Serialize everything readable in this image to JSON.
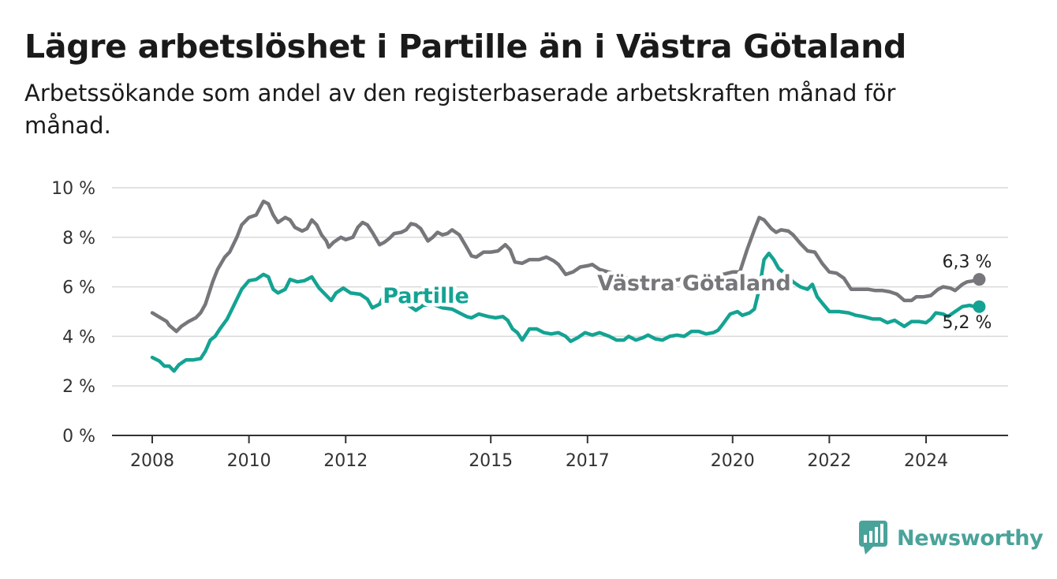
{
  "header": {
    "title": "Lägre arbetslöshet i Partille än i Västra Götaland",
    "subtitle": "Arbetssökande som andel av den registerbaserade arbetskraften månad för månad."
  },
  "brand": {
    "name": "Newsworthy",
    "icon": "bar-chart-bubble-icon",
    "color": "#4aa39a"
  },
  "chart_data": {
    "type": "line",
    "y_ticks": [
      "0 %",
      "2 %",
      "4 %",
      "6 %",
      "8 %",
      "10 %"
    ],
    "ylim": [
      0,
      10
    ],
    "x_ticks": [
      {
        "label": "2008",
        "x": 2008.0
      },
      {
        "label": "2010",
        "x": 2010.0
      },
      {
        "label": "2012",
        "x": 2012.0
      },
      {
        "label": "2015",
        "x": 2015.0
      },
      {
        "label": "2017",
        "x": 2017.0
      },
      {
        "label": "2020",
        "x": 2020.0
      },
      {
        "label": "2022",
        "x": 2022.0
      },
      {
        "label": "2024",
        "x": 2024.0
      }
    ],
    "grid": true,
    "series": [
      {
        "name": "Västra Götaland",
        "color": "#76767b",
        "end_label": "6,3 %",
        "points": [
          [
            2008.0,
            4.95
          ],
          [
            2008.3,
            4.6
          ],
          [
            2008.35,
            4.45
          ],
          [
            2008.5,
            4.2
          ],
          [
            2008.6,
            4.4
          ],
          [
            2008.75,
            4.6
          ],
          [
            2008.9,
            4.75
          ],
          [
            2009.0,
            4.95
          ],
          [
            2009.1,
            5.3
          ],
          [
            2009.25,
            6.2
          ],
          [
            2009.35,
            6.7
          ],
          [
            2009.5,
            7.2
          ],
          [
            2009.6,
            7.4
          ],
          [
            2009.75,
            8.0
          ],
          [
            2009.85,
            8.5
          ],
          [
            2010.0,
            8.8
          ],
          [
            2010.15,
            8.9
          ],
          [
            2010.3,
            9.45
          ],
          [
            2010.4,
            9.35
          ],
          [
            2010.5,
            8.9
          ],
          [
            2010.6,
            8.6
          ],
          [
            2010.75,
            8.8
          ],
          [
            2010.85,
            8.7
          ],
          [
            2010.95,
            8.4
          ],
          [
            2011.1,
            8.25
          ],
          [
            2011.2,
            8.35
          ],
          [
            2011.3,
            8.7
          ],
          [
            2011.4,
            8.5
          ],
          [
            2011.5,
            8.1
          ],
          [
            2011.6,
            7.85
          ],
          [
            2011.65,
            7.6
          ],
          [
            2011.75,
            7.8
          ],
          [
            2011.9,
            8.0
          ],
          [
            2012.0,
            7.9
          ],
          [
            2012.15,
            8.0
          ],
          [
            2012.25,
            8.4
          ],
          [
            2012.35,
            8.6
          ],
          [
            2012.45,
            8.5
          ],
          [
            2012.55,
            8.2
          ],
          [
            2012.7,
            7.7
          ],
          [
            2012.8,
            7.8
          ],
          [
            2012.9,
            7.95
          ],
          [
            2013.0,
            8.15
          ],
          [
            2013.15,
            8.2
          ],
          [
            2013.25,
            8.3
          ],
          [
            2013.35,
            8.55
          ],
          [
            2013.45,
            8.5
          ],
          [
            2013.55,
            8.35
          ],
          [
            2013.7,
            7.85
          ],
          [
            2013.8,
            8.0
          ],
          [
            2013.9,
            8.2
          ],
          [
            2014.0,
            8.1
          ],
          [
            2014.1,
            8.15
          ],
          [
            2014.2,
            8.3
          ],
          [
            2014.35,
            8.1
          ],
          [
            2014.5,
            7.6
          ],
          [
            2014.6,
            7.25
          ],
          [
            2014.7,
            7.2
          ],
          [
            2014.85,
            7.4
          ],
          [
            2015.0,
            7.4
          ],
          [
            2015.15,
            7.45
          ],
          [
            2015.3,
            7.7
          ],
          [
            2015.4,
            7.5
          ],
          [
            2015.5,
            7.0
          ],
          [
            2015.65,
            6.95
          ],
          [
            2015.8,
            7.1
          ],
          [
            2016.0,
            7.1
          ],
          [
            2016.15,
            7.2
          ],
          [
            2016.3,
            7.05
          ],
          [
            2016.4,
            6.9
          ],
          [
            2016.55,
            6.5
          ],
          [
            2016.7,
            6.6
          ],
          [
            2016.85,
            6.8
          ],
          [
            2017.0,
            6.85
          ],
          [
            2017.1,
            6.9
          ],
          [
            2017.25,
            6.7
          ],
          [
            2017.6,
            6.5
          ],
          [
            2017.9,
            6.3
          ],
          [
            2018.2,
            6.2
          ],
          [
            2018.7,
            6.2
          ],
          [
            2019.0,
            6.35
          ],
          [
            2019.3,
            6.25
          ],
          [
            2019.6,
            6.4
          ],
          [
            2019.9,
            6.55
          ],
          [
            2020.0,
            6.6
          ],
          [
            2020.15,
            6.6
          ],
          [
            2020.3,
            7.5
          ],
          [
            2020.45,
            8.3
          ],
          [
            2020.55,
            8.8
          ],
          [
            2020.65,
            8.7
          ],
          [
            2020.8,
            8.35
          ],
          [
            2020.9,
            8.2
          ],
          [
            2021.0,
            8.3
          ],
          [
            2021.15,
            8.25
          ],
          [
            2021.25,
            8.1
          ],
          [
            2021.4,
            7.75
          ],
          [
            2021.55,
            7.45
          ],
          [
            2021.7,
            7.4
          ],
          [
            2021.85,
            6.95
          ],
          [
            2022.0,
            6.6
          ],
          [
            2022.15,
            6.55
          ],
          [
            2022.3,
            6.35
          ],
          [
            2022.45,
            5.9
          ],
          [
            2022.6,
            5.9
          ],
          [
            2022.8,
            5.9
          ],
          [
            2022.95,
            5.85
          ],
          [
            2023.1,
            5.85
          ],
          [
            2023.25,
            5.8
          ],
          [
            2023.4,
            5.7
          ],
          [
            2023.55,
            5.45
          ],
          [
            2023.7,
            5.45
          ],
          [
            2023.8,
            5.6
          ],
          [
            2023.95,
            5.6
          ],
          [
            2024.1,
            5.65
          ],
          [
            2024.25,
            5.9
          ],
          [
            2024.35,
            6.0
          ],
          [
            2024.5,
            5.95
          ],
          [
            2024.6,
            5.85
          ],
          [
            2024.75,
            6.1
          ],
          [
            2024.85,
            6.2
          ],
          [
            2025.0,
            6.25
          ],
          [
            2025.1,
            6.3
          ]
        ]
      },
      {
        "name": "Partille",
        "color": "#14a393",
        "end_label": "5,2 %",
        "points": [
          [
            2008.0,
            3.15
          ],
          [
            2008.15,
            3.0
          ],
          [
            2008.25,
            2.8
          ],
          [
            2008.35,
            2.8
          ],
          [
            2008.45,
            2.6
          ],
          [
            2008.55,
            2.85
          ],
          [
            2008.7,
            3.05
          ],
          [
            2008.85,
            3.05
          ],
          [
            2009.0,
            3.1
          ],
          [
            2009.1,
            3.4
          ],
          [
            2009.2,
            3.85
          ],
          [
            2009.3,
            4.0
          ],
          [
            2009.4,
            4.3
          ],
          [
            2009.55,
            4.7
          ],
          [
            2009.7,
            5.3
          ],
          [
            2009.85,
            5.9
          ],
          [
            2010.0,
            6.25
          ],
          [
            2010.15,
            6.3
          ],
          [
            2010.3,
            6.5
          ],
          [
            2010.4,
            6.4
          ],
          [
            2010.5,
            5.9
          ],
          [
            2010.6,
            5.75
          ],
          [
            2010.75,
            5.9
          ],
          [
            2010.85,
            6.3
          ],
          [
            2011.0,
            6.2
          ],
          [
            2011.15,
            6.25
          ],
          [
            2011.3,
            6.4
          ],
          [
            2011.45,
            5.95
          ],
          [
            2011.6,
            5.65
          ],
          [
            2011.7,
            5.45
          ],
          [
            2011.8,
            5.75
          ],
          [
            2011.95,
            5.95
          ],
          [
            2012.1,
            5.75
          ],
          [
            2012.3,
            5.7
          ],
          [
            2012.45,
            5.5
          ],
          [
            2012.55,
            5.15
          ],
          [
            2012.7,
            5.3
          ],
          [
            2012.8,
            5.7
          ],
          [
            2012.95,
            5.55
          ],
          [
            2013.1,
            5.6
          ],
          [
            2013.3,
            5.25
          ],
          [
            2013.45,
            5.05
          ],
          [
            2013.6,
            5.25
          ],
          [
            2013.8,
            5.3
          ],
          [
            2014.0,
            5.15
          ],
          [
            2014.2,
            5.1
          ],
          [
            2014.35,
            4.95
          ],
          [
            2014.5,
            4.8
          ],
          [
            2014.6,
            4.75
          ],
          [
            2014.75,
            4.9
          ],
          [
            2014.95,
            4.8
          ],
          [
            2015.1,
            4.75
          ],
          [
            2015.25,
            4.8
          ],
          [
            2015.35,
            4.65
          ],
          [
            2015.45,
            4.3
          ],
          [
            2015.55,
            4.15
          ],
          [
            2015.65,
            3.85
          ],
          [
            2015.8,
            4.3
          ],
          [
            2015.95,
            4.3
          ],
          [
            2016.1,
            4.15
          ],
          [
            2016.25,
            4.1
          ],
          [
            2016.4,
            4.15
          ],
          [
            2016.55,
            4.0
          ],
          [
            2016.65,
            3.8
          ],
          [
            2016.8,
            3.95
          ],
          [
            2016.95,
            4.15
          ],
          [
            2017.1,
            4.05
          ],
          [
            2017.25,
            4.15
          ],
          [
            2017.45,
            4.0
          ],
          [
            2017.6,
            3.85
          ],
          [
            2017.75,
            3.85
          ],
          [
            2017.85,
            4.0
          ],
          [
            2018.0,
            3.85
          ],
          [
            2018.15,
            3.95
          ],
          [
            2018.25,
            4.05
          ],
          [
            2018.4,
            3.9
          ],
          [
            2018.55,
            3.85
          ],
          [
            2018.7,
            4.0
          ],
          [
            2018.85,
            4.05
          ],
          [
            2019.0,
            4.0
          ],
          [
            2019.15,
            4.2
          ],
          [
            2019.3,
            4.2
          ],
          [
            2019.45,
            4.1
          ],
          [
            2019.6,
            4.15
          ],
          [
            2019.7,
            4.25
          ],
          [
            2019.8,
            4.5
          ],
          [
            2019.95,
            4.9
          ],
          [
            2020.1,
            5.0
          ],
          [
            2020.2,
            4.85
          ],
          [
            2020.35,
            4.95
          ],
          [
            2020.45,
            5.1
          ],
          [
            2020.55,
            5.9
          ],
          [
            2020.65,
            7.1
          ],
          [
            2020.75,
            7.35
          ],
          [
            2020.85,
            7.1
          ],
          [
            2020.95,
            6.75
          ],
          [
            2021.1,
            6.5
          ],
          [
            2021.25,
            6.2
          ],
          [
            2021.4,
            6.0
          ],
          [
            2021.55,
            5.9
          ],
          [
            2021.65,
            6.1
          ],
          [
            2021.75,
            5.6
          ],
          [
            2021.85,
            5.35
          ],
          [
            2022.0,
            5.0
          ],
          [
            2022.2,
            5.0
          ],
          [
            2022.4,
            4.95
          ],
          [
            2022.55,
            4.85
          ],
          [
            2022.7,
            4.8
          ],
          [
            2022.9,
            4.7
          ],
          [
            2023.05,
            4.7
          ],
          [
            2023.2,
            4.55
          ],
          [
            2023.35,
            4.65
          ],
          [
            2023.55,
            4.4
          ],
          [
            2023.7,
            4.6
          ],
          [
            2023.85,
            4.6
          ],
          [
            2024.0,
            4.55
          ],
          [
            2024.1,
            4.7
          ],
          [
            2024.2,
            4.95
          ],
          [
            2024.35,
            4.9
          ],
          [
            2024.45,
            4.8
          ],
          [
            2024.6,
            5.0
          ],
          [
            2024.75,
            5.2
          ],
          [
            2024.9,
            5.25
          ],
          [
            2025.0,
            5.2
          ],
          [
            2025.1,
            5.2
          ]
        ]
      }
    ]
  }
}
